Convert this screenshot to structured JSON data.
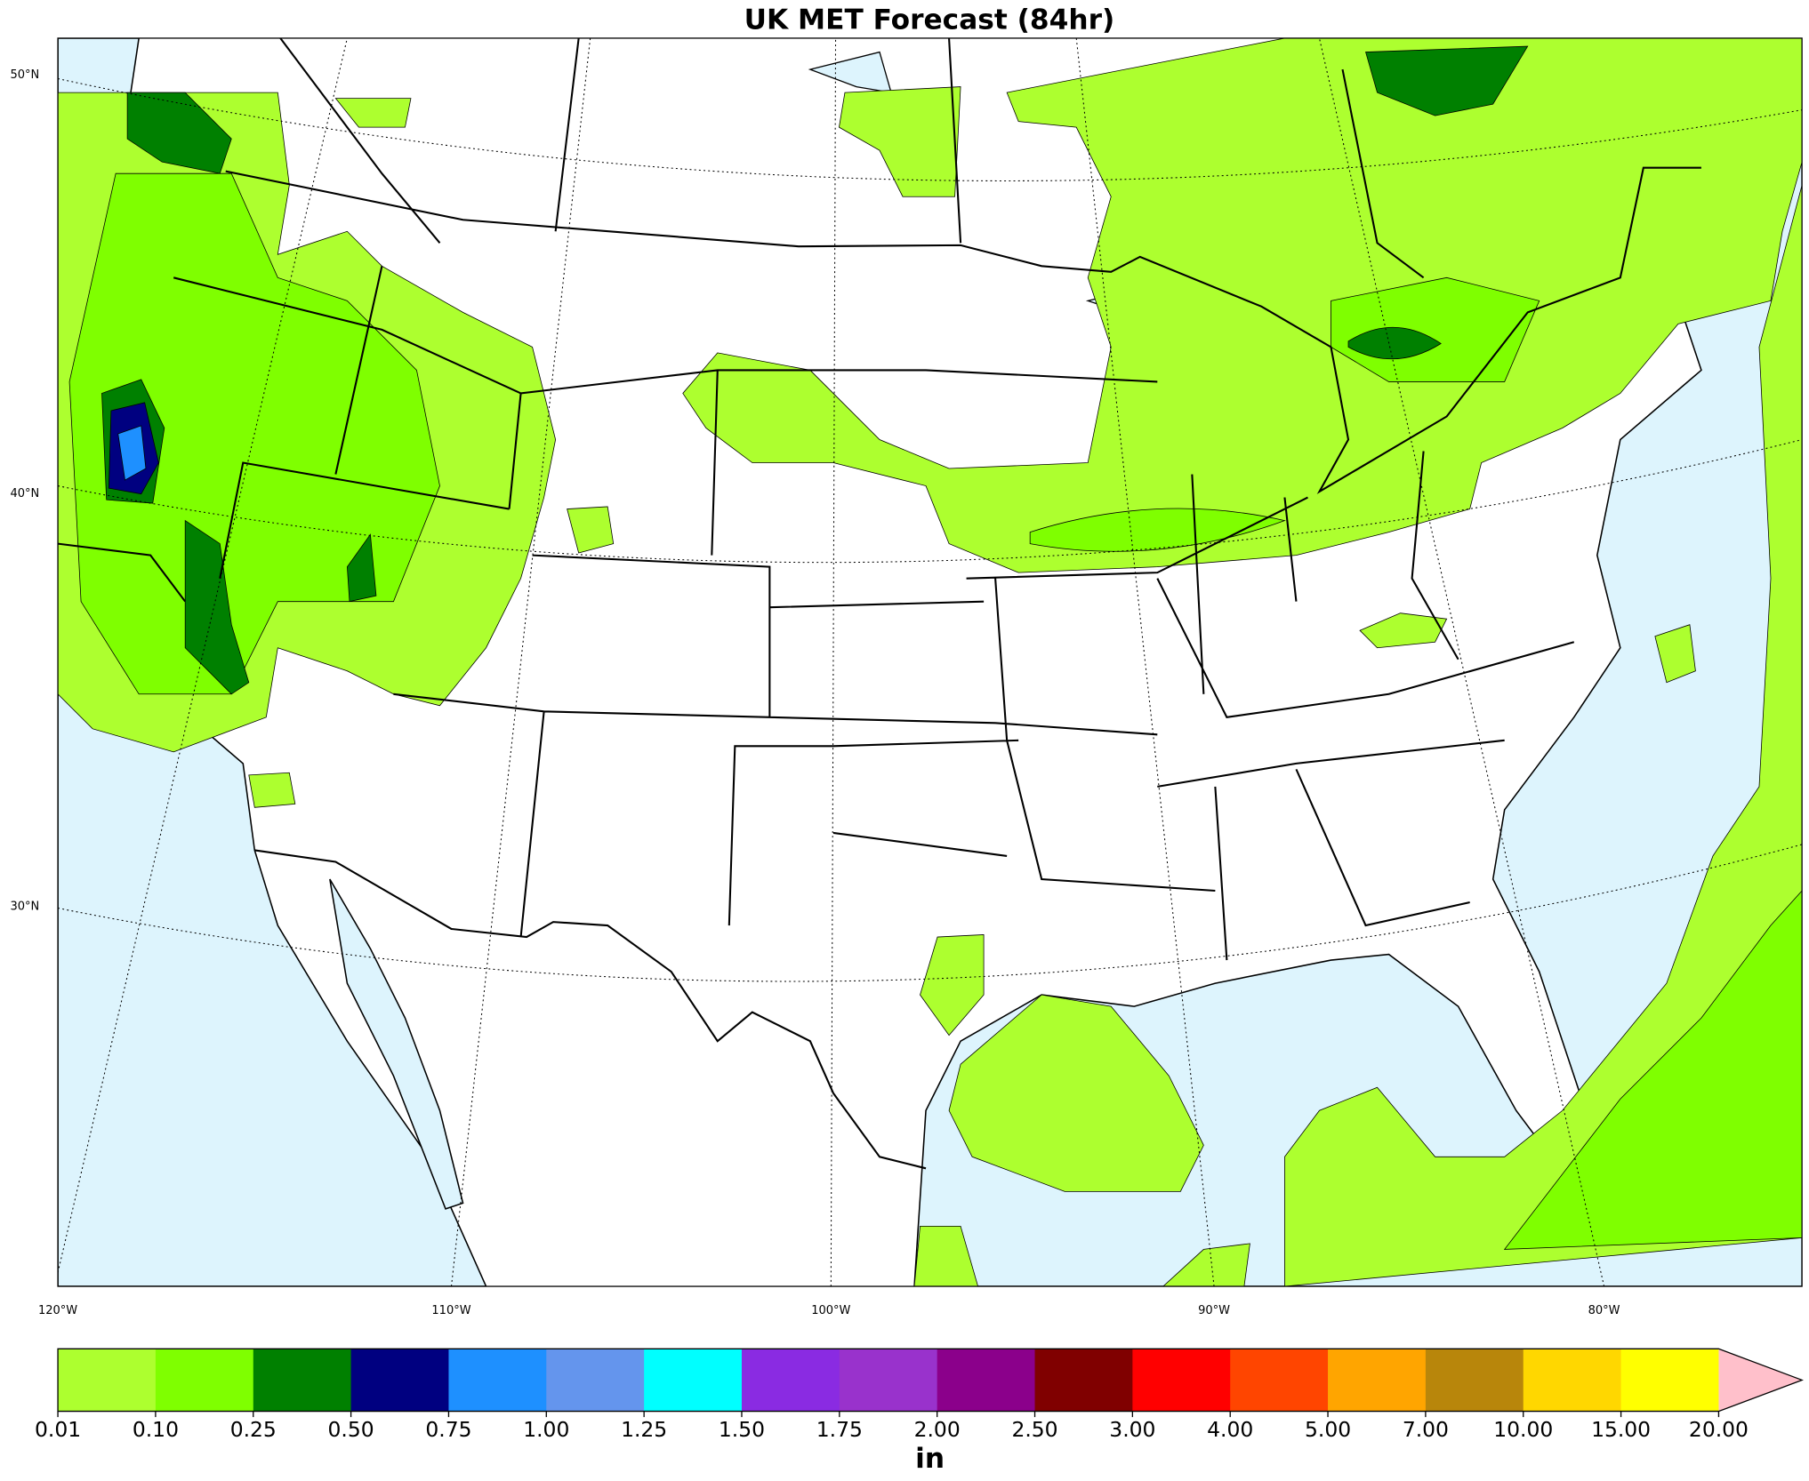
{
  "title": "UK MET Forecast (84hr)",
  "map": {
    "lat_labels": [
      "50°N",
      "40°N",
      "30°N"
    ],
    "lon_labels": [
      "120°W",
      "110°W",
      "100°W",
      "90°W",
      "80°W"
    ]
  },
  "colorbar": {
    "levels": [
      "0.01",
      "0.10",
      "0.25",
      "0.50",
      "0.75",
      "1.00",
      "1.25",
      "1.50",
      "1.75",
      "2.00",
      "2.50",
      "3.00",
      "4.00",
      "5.00",
      "7.00",
      "10.00",
      "15.00",
      "20.00"
    ],
    "colors": [
      "#adff2f",
      "#7fff00",
      "#008000",
      "#000080",
      "#1e90ff",
      "#6495ed",
      "#00ffff",
      "#8a2be2",
      "#9932cc",
      "#8b008b",
      "#800000",
      "#ff0000",
      "#ff4500",
      "#ffa500",
      "#b8860b",
      "#ffd700",
      "#ffff00"
    ],
    "extend_color": "#ffc0cb",
    "unit": "in"
  }
}
